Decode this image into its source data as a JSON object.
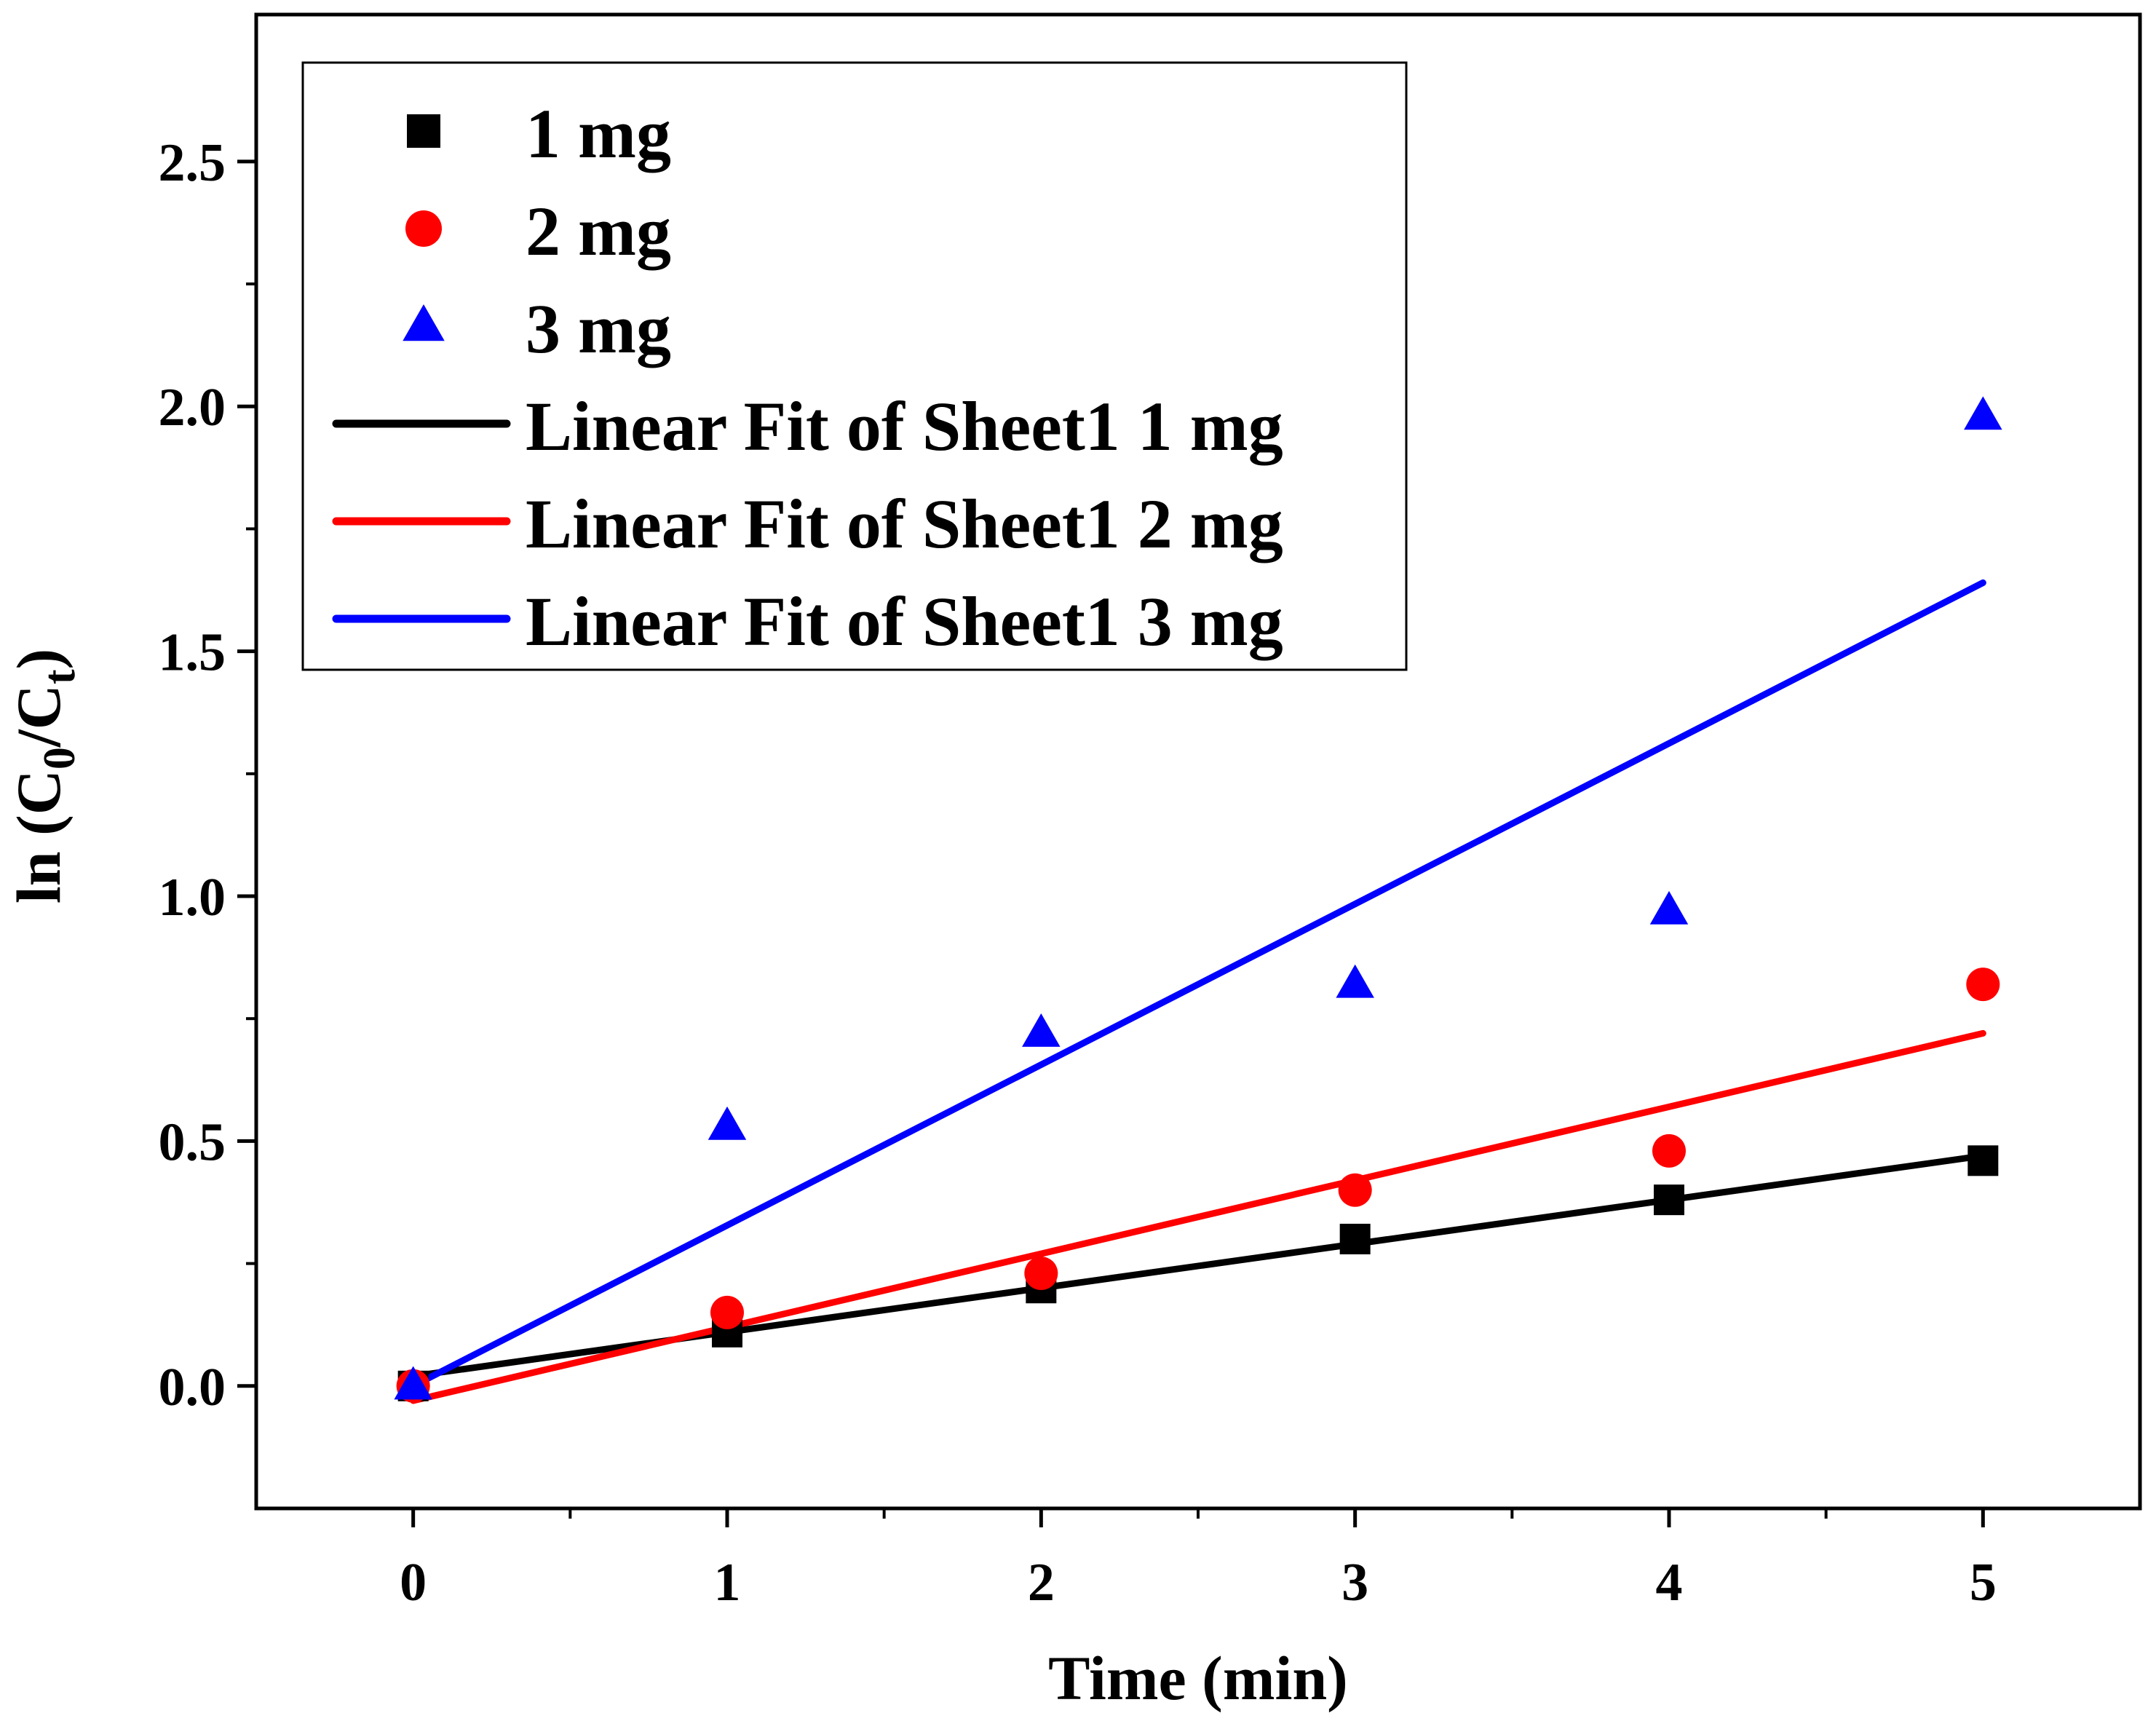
{
  "chart_data": {
    "type": "scatter",
    "xlabel": "Time (min)",
    "ylabel_parts": [
      "ln (C",
      "0",
      "/C",
      "t",
      ")"
    ],
    "xlim": [
      -0.5,
      5.5
    ],
    "ylim": [
      -0.25,
      2.8
    ],
    "xticks": [
      0,
      1,
      2,
      3,
      4,
      5
    ],
    "yticks": [
      0.0,
      0.5,
      1.0,
      1.5,
      2.0,
      2.5
    ],
    "xtick_labels": [
      "0",
      "1",
      "2",
      "3",
      "4",
      "5"
    ],
    "ytick_labels": [
      "0.0",
      "0.5",
      "1.0",
      "1.5",
      "2.0",
      "2.5"
    ],
    "grid": false,
    "legend_position": "top-left",
    "series": [
      {
        "name": "1 mg",
        "marker": "square",
        "color": "#000000",
        "x": [
          0,
          1,
          2,
          3,
          4,
          5
        ],
        "y": [
          0.0,
          0.11,
          0.2,
          0.3,
          0.38,
          0.46
        ]
      },
      {
        "name": "2 mg",
        "marker": "circle",
        "color": "#ff0000",
        "x": [
          0,
          1,
          2,
          3,
          4,
          5
        ],
        "y": [
          0.0,
          0.15,
          0.23,
          0.4,
          0.48,
          0.82
        ]
      },
      {
        "name": "3 mg",
        "marker": "triangle",
        "color": "#0000ff",
        "x": [
          0,
          1,
          2,
          3,
          4,
          5
        ],
        "y": [
          0.0,
          0.53,
          0.72,
          0.82,
          0.97,
          1.98
        ]
      }
    ],
    "fits": [
      {
        "name": "Linear Fit of Sheet1 1 mg",
        "color": "#000000",
        "x": [
          0,
          5
        ],
        "y": [
          0.02,
          0.47
        ]
      },
      {
        "name": "Linear Fit of Sheet1 2 mg",
        "color": "#ff0000",
        "x": [
          0,
          5
        ],
        "y": [
          -0.03,
          0.72
        ]
      },
      {
        "name": "Linear Fit of Sheet1 3 mg",
        "color": "#0000ff",
        "x": [
          0,
          5
        ],
        "y": [
          0.0,
          1.64
        ]
      }
    ]
  }
}
